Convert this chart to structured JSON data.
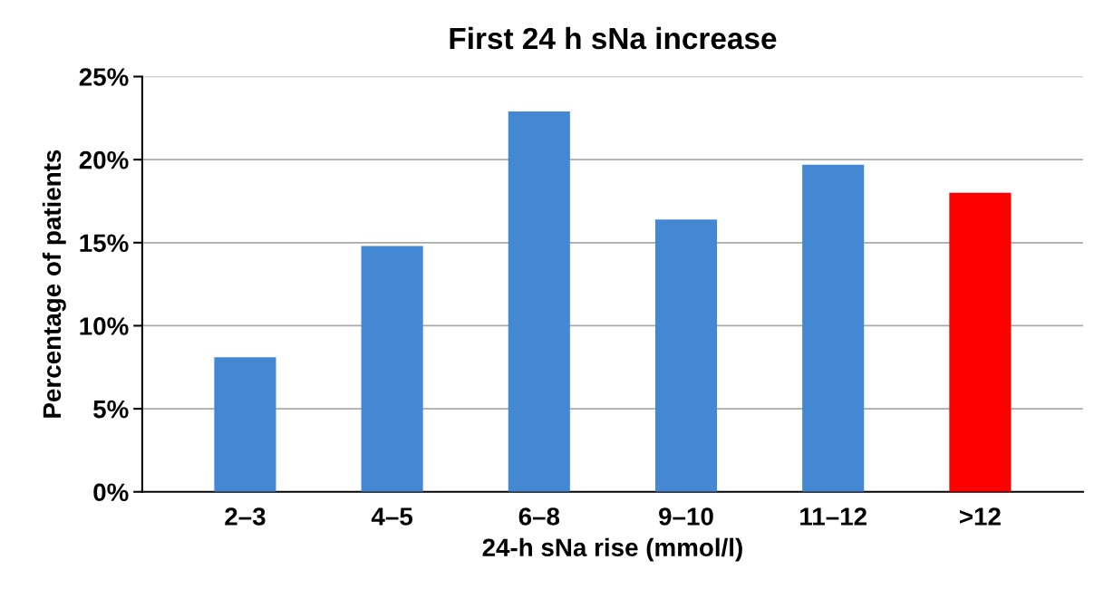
{
  "chart_data": {
    "type": "bar",
    "title": "First 24 h sNa increase",
    "xlabel": "24-h sNa rise (mmol/l)",
    "ylabel": "Percentage of patients",
    "categories": [
      "2–3",
      "4–5",
      "6–8",
      "9–10",
      "11–12",
      ">12"
    ],
    "values": [
      8.1,
      14.8,
      22.9,
      16.4,
      19.7,
      18.0
    ],
    "colors": [
      "#4488d4",
      "#4488d4",
      "#4488d4",
      "#4488d4",
      "#4488d4",
      "#ff0000"
    ],
    "ylim": [
      0,
      25
    ],
    "yticks": [
      {
        "value": 0,
        "label": "0%"
      },
      {
        "value": 5,
        "label": "5%"
      },
      {
        "value": 10,
        "label": "10%"
      },
      {
        "value": 15,
        "label": "15%"
      },
      {
        "value": 20,
        "label": "20%"
      },
      {
        "value": 25,
        "label": "25%"
      }
    ],
    "grid": "y"
  }
}
